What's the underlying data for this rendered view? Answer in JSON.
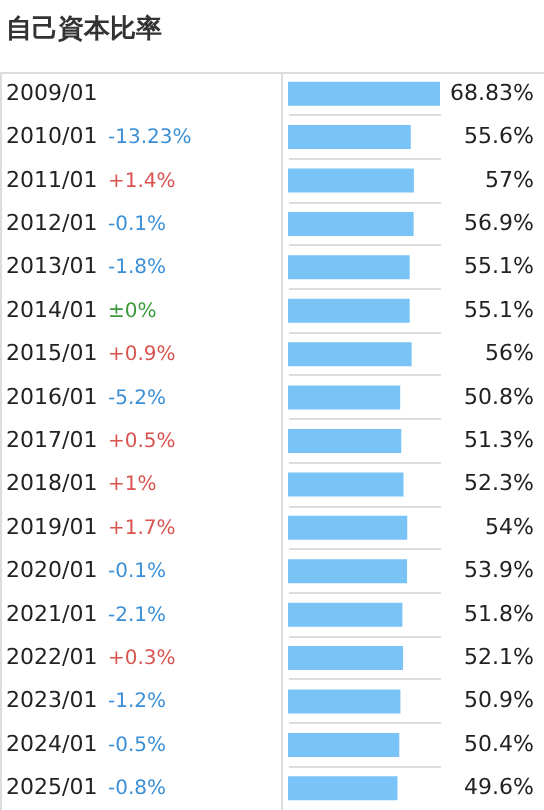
{
  "chart_data": {
    "type": "bar",
    "orientation": "horizontal",
    "title": "自己資本比率",
    "categories": [
      "2009/01",
      "2010/01",
      "2011/01",
      "2012/01",
      "2013/01",
      "2014/01",
      "2015/01",
      "2016/01",
      "2017/01",
      "2018/01",
      "2019/01",
      "2020/01",
      "2021/01",
      "2022/01",
      "2023/01",
      "2024/01",
      "2025/01"
    ],
    "values": [
      68.83,
      55.6,
      57,
      56.9,
      55.1,
      55.1,
      56,
      50.8,
      51.3,
      52.3,
      54,
      53.9,
      51.8,
      52.1,
      50.9,
      50.4,
      49.6
    ],
    "value_labels": [
      "68.83%",
      "55.6%",
      "57%",
      "56.9%",
      "55.1%",
      "55.1%",
      "56%",
      "50.8%",
      "51.3%",
      "52.3%",
      "54%",
      "53.9%",
      "51.8%",
      "52.1%",
      "50.9%",
      "50.4%",
      "49.6%"
    ],
    "color": "#79c3f7",
    "grid": true,
    "annotations": [
      "-13.23%",
      "+1.4%",
      "-0.1%",
      "-1.8%",
      "±0%",
      "+0.9%",
      "-5.2%",
      "+0.5%",
      "+1%",
      "+1.7%",
      "-0.1%",
      "-2.1%",
      "+0.3%",
      "-1.2%",
      "-0.5%",
      "-0.8%"
    ]
  }
}
